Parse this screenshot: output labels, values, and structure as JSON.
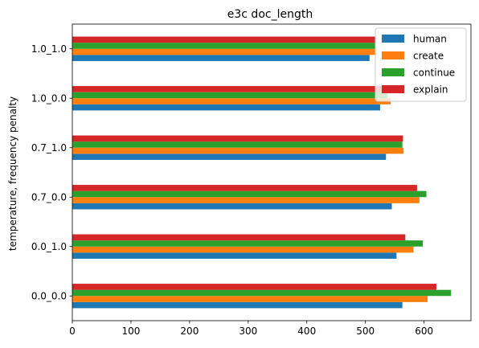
{
  "chart_data": {
    "type": "bar",
    "orientation": "horizontal",
    "title": "e3c doc_length",
    "xlabel": "",
    "ylabel": "temperature, frequency penalty",
    "categories": [
      "0.0_0.0",
      "0.0_1.0",
      "0.7_0.0",
      "0.7_1.0",
      "1.0_0.0",
      "1.0_1.0"
    ],
    "series": [
      {
        "name": "human",
        "color": "#1f77b4",
        "values": [
          563,
          553,
          545,
          535,
          525,
          507
        ]
      },
      {
        "name": "create",
        "color": "#ff7f0e",
        "values": [
          606,
          582,
          592,
          565,
          543,
          518
        ]
      },
      {
        "name": "continue",
        "color": "#2ca02c",
        "values": [
          646,
          598,
          604,
          563,
          538,
          517
        ]
      },
      {
        "name": "explain",
        "color": "#d62728",
        "values": [
          621,
          568,
          588,
          564,
          534,
          518
        ]
      }
    ],
    "xlim": [
      0,
      680
    ],
    "xticks": [
      0,
      100,
      200,
      300,
      400,
      500,
      600
    ],
    "grid": false,
    "legend_position": "top-right"
  }
}
